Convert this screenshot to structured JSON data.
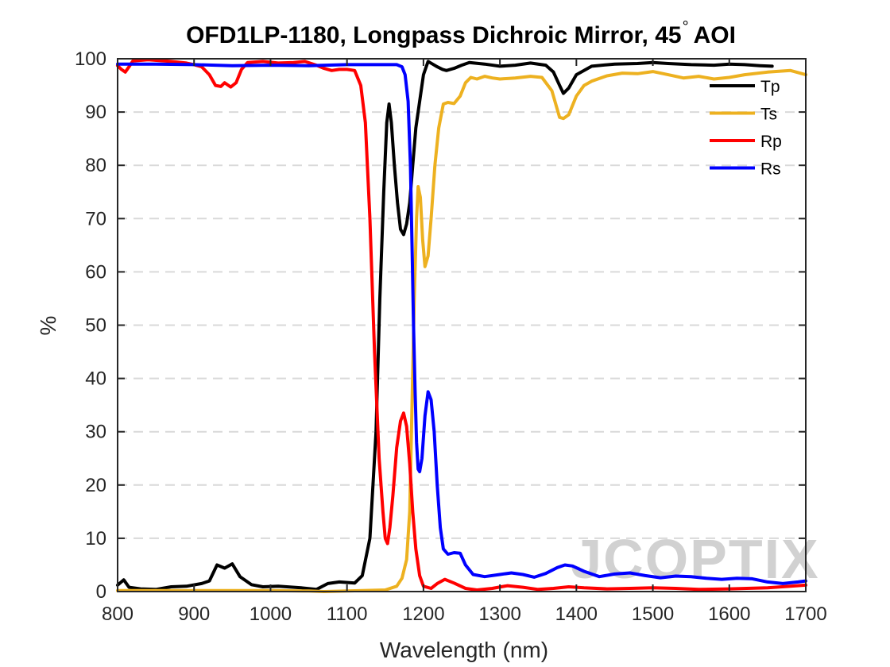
{
  "chart_data": {
    "type": "line",
    "title": "OFD1LP-1180, Longpass Dichroic Mirror, 45",
    "title_suffix": "AOI",
    "title_degree": "°",
    "xlabel": "Wavelength (nm)",
    "ylabel": "%",
    "xlim": [
      800,
      1700
    ],
    "ylim": [
      0,
      100
    ],
    "xticks": [
      800,
      900,
      1000,
      1100,
      1200,
      1300,
      1400,
      1500,
      1600,
      1700
    ],
    "yticks": [
      0,
      10,
      20,
      30,
      40,
      50,
      60,
      70,
      80,
      90,
      100
    ],
    "grid": "horizontal-dashed",
    "legend_position": "top-right",
    "watermark": "JCOPTIX",
    "series": [
      {
        "name": "Tp",
        "color": "#000000",
        "points": [
          [
            800,
            1.2
          ],
          [
            808,
            2.2
          ],
          [
            815,
            0.8
          ],
          [
            830,
            0.5
          ],
          [
            850,
            0.4
          ],
          [
            870,
            0.9
          ],
          [
            890,
            1.0
          ],
          [
            910,
            1.5
          ],
          [
            920,
            2.0
          ],
          [
            930,
            5.0
          ],
          [
            940,
            4.4
          ],
          [
            950,
            5.2
          ],
          [
            960,
            2.8
          ],
          [
            975,
            1.3
          ],
          [
            990,
            0.9
          ],
          [
            1010,
            1.0
          ],
          [
            1040,
            0.7
          ],
          [
            1060,
            0.4
          ],
          [
            1075,
            1.5
          ],
          [
            1090,
            1.8
          ],
          [
            1110,
            1.6
          ],
          [
            1120,
            3
          ],
          [
            1130,
            10
          ],
          [
            1138,
            30
          ],
          [
            1143,
            55
          ],
          [
            1148,
            75
          ],
          [
            1152,
            88
          ],
          [
            1155,
            91.5
          ],
          [
            1158,
            88
          ],
          [
            1162,
            80
          ],
          [
            1166,
            73
          ],
          [
            1170,
            68
          ],
          [
            1174,
            67
          ],
          [
            1178,
            69
          ],
          [
            1182,
            73
          ],
          [
            1186,
            80
          ],
          [
            1190,
            87
          ],
          [
            1195,
            92
          ],
          [
            1200,
            97
          ],
          [
            1206,
            99.5
          ],
          [
            1212,
            99
          ],
          [
            1218,
            98.5
          ],
          [
            1225,
            98
          ],
          [
            1230,
            97.8
          ],
          [
            1240,
            98.2
          ],
          [
            1250,
            98.8
          ],
          [
            1260,
            99.3
          ],
          [
            1280,
            99
          ],
          [
            1300,
            98.6
          ],
          [
            1320,
            98.8
          ],
          [
            1340,
            99.2
          ],
          [
            1360,
            98.8
          ],
          [
            1370,
            97.5
          ],
          [
            1378,
            95
          ],
          [
            1383,
            93.5
          ],
          [
            1390,
            94.5
          ],
          [
            1400,
            97
          ],
          [
            1420,
            98.6
          ],
          [
            1450,
            99
          ],
          [
            1480,
            99.1
          ],
          [
            1500,
            99.3
          ],
          [
            1520,
            99.1
          ],
          [
            1550,
            98.9
          ],
          [
            1580,
            98.8
          ],
          [
            1600,
            99
          ],
          [
            1620,
            98.9
          ],
          [
            1640,
            98.7
          ],
          [
            1656,
            98.6
          ]
        ]
      },
      {
        "name": "Ts",
        "color": "#EDB120",
        "points": [
          [
            800,
            0.2
          ],
          [
            900,
            0.2
          ],
          [
            1000,
            0.2
          ],
          [
            1050,
            0.1
          ],
          [
            1070,
            0.0
          ],
          [
            1100,
            0.1
          ],
          [
            1150,
            0.3
          ],
          [
            1165,
            1.0
          ],
          [
            1172,
            2.5
          ],
          [
            1178,
            6
          ],
          [
            1182,
            15
          ],
          [
            1185,
            35
          ],
          [
            1188,
            55
          ],
          [
            1191,
            70
          ],
          [
            1193,
            76
          ],
          [
            1196,
            74
          ],
          [
            1199,
            66
          ],
          [
            1202,
            61
          ],
          [
            1206,
            63
          ],
          [
            1210,
            70
          ],
          [
            1215,
            80
          ],
          [
            1220,
            87
          ],
          [
            1226,
            91.5
          ],
          [
            1232,
            91.8
          ],
          [
            1240,
            91.6
          ],
          [
            1248,
            93
          ],
          [
            1255,
            95.5
          ],
          [
            1262,
            96.5
          ],
          [
            1270,
            96.2
          ],
          [
            1280,
            96.7
          ],
          [
            1290,
            96.4
          ],
          [
            1300,
            96.2
          ],
          [
            1320,
            96.4
          ],
          [
            1340,
            96.7
          ],
          [
            1355,
            96.5
          ],
          [
            1368,
            94
          ],
          [
            1378,
            89
          ],
          [
            1383,
            88.8
          ],
          [
            1390,
            89.5
          ],
          [
            1400,
            93
          ],
          [
            1410,
            95
          ],
          [
            1420,
            95.8
          ],
          [
            1440,
            96.8
          ],
          [
            1460,
            97.3
          ],
          [
            1480,
            97.2
          ],
          [
            1500,
            97.6
          ],
          [
            1520,
            97
          ],
          [
            1540,
            96.4
          ],
          [
            1560,
            96.7
          ],
          [
            1580,
            96.2
          ],
          [
            1600,
            96.5
          ],
          [
            1620,
            97
          ],
          [
            1650,
            97.5
          ],
          [
            1680,
            97.8
          ],
          [
            1700,
            97
          ]
        ]
      },
      {
        "name": "Rp",
        "color": "#FF0000",
        "points": [
          [
            800,
            98.7
          ],
          [
            805,
            98
          ],
          [
            810,
            97.5
          ],
          [
            815,
            98.5
          ],
          [
            820,
            99.6
          ],
          [
            840,
            99.8
          ],
          [
            870,
            99.5
          ],
          [
            890,
            99.2
          ],
          [
            900,
            98.9
          ],
          [
            910,
            98.5
          ],
          [
            920,
            97
          ],
          [
            928,
            95
          ],
          [
            935,
            94.8
          ],
          [
            940,
            95.5
          ],
          [
            948,
            94.7
          ],
          [
            955,
            95.5
          ],
          [
            962,
            98
          ],
          [
            970,
            99.3
          ],
          [
            990,
            99.5
          ],
          [
            1010,
            99.2
          ],
          [
            1030,
            99.3
          ],
          [
            1045,
            99.5
          ],
          [
            1060,
            98.8
          ],
          [
            1070,
            98.2
          ],
          [
            1080,
            97.8
          ],
          [
            1090,
            98
          ],
          [
            1100,
            98
          ],
          [
            1110,
            97.8
          ],
          [
            1118,
            95
          ],
          [
            1124,
            88
          ],
          [
            1130,
            70
          ],
          [
            1136,
            45
          ],
          [
            1142,
            25
          ],
          [
            1147,
            15
          ],
          [
            1150,
            10
          ],
          [
            1153,
            9
          ],
          [
            1156,
            12
          ],
          [
            1160,
            18
          ],
          [
            1165,
            27
          ],
          [
            1170,
            32
          ],
          [
            1174,
            33.5
          ],
          [
            1178,
            31
          ],
          [
            1182,
            24
          ],
          [
            1186,
            15
          ],
          [
            1190,
            8
          ],
          [
            1195,
            3
          ],
          [
            1200,
            1
          ],
          [
            1210,
            0.6
          ],
          [
            1218,
            1.5
          ],
          [
            1228,
            2.3
          ],
          [
            1240,
            1.6
          ],
          [
            1255,
            0.6
          ],
          [
            1270,
            0.3
          ],
          [
            1290,
            0.6
          ],
          [
            1310,
            1.1
          ],
          [
            1330,
            0.8
          ],
          [
            1350,
            0.4
          ],
          [
            1370,
            0.6
          ],
          [
            1390,
            0.9
          ],
          [
            1410,
            0.7
          ],
          [
            1440,
            0.5
          ],
          [
            1470,
            0.6
          ],
          [
            1500,
            0.7
          ],
          [
            1530,
            0.6
          ],
          [
            1560,
            0.4
          ],
          [
            1600,
            0.5
          ],
          [
            1650,
            0.7
          ],
          [
            1680,
            1.0
          ],
          [
            1700,
            1.2
          ]
        ]
      },
      {
        "name": "Rs",
        "color": "#0000FF",
        "points": [
          [
            800,
            99
          ],
          [
            850,
            99
          ],
          [
            900,
            98.9
          ],
          [
            950,
            98.7
          ],
          [
            1000,
            98.8
          ],
          [
            1050,
            98.7
          ],
          [
            1100,
            98.9
          ],
          [
            1150,
            98.9
          ],
          [
            1165,
            98.9
          ],
          [
            1172,
            98.5
          ],
          [
            1176,
            97
          ],
          [
            1180,
            92
          ],
          [
            1183,
            80
          ],
          [
            1185,
            65
          ],
          [
            1187,
            50
          ],
          [
            1189,
            38
          ],
          [
            1191,
            28
          ],
          [
            1193,
            23
          ],
          [
            1195,
            22.5
          ],
          [
            1198,
            25
          ],
          [
            1202,
            33
          ],
          [
            1206,
            37.5
          ],
          [
            1210,
            36
          ],
          [
            1214,
            30
          ],
          [
            1218,
            20
          ],
          [
            1222,
            12
          ],
          [
            1226,
            8
          ],
          [
            1232,
            7
          ],
          [
            1240,
            7.3
          ],
          [
            1248,
            7.2
          ],
          [
            1255,
            5
          ],
          [
            1265,
            3.2
          ],
          [
            1280,
            2.8
          ],
          [
            1300,
            3.2
          ],
          [
            1315,
            3.5
          ],
          [
            1330,
            3.2
          ],
          [
            1345,
            2.7
          ],
          [
            1360,
            3.4
          ],
          [
            1375,
            4.5
          ],
          [
            1385,
            5.0
          ],
          [
            1395,
            4.8
          ],
          [
            1410,
            3.8
          ],
          [
            1430,
            2.8
          ],
          [
            1450,
            3.3
          ],
          [
            1470,
            3.5
          ],
          [
            1490,
            3.0
          ],
          [
            1510,
            2.6
          ],
          [
            1530,
            2.9
          ],
          [
            1550,
            2.8
          ],
          [
            1570,
            2.5
          ],
          [
            1590,
            2.3
          ],
          [
            1610,
            2.5
          ],
          [
            1630,
            2.4
          ],
          [
            1650,
            1.8
          ],
          [
            1670,
            1.5
          ],
          [
            1690,
            1.8
          ],
          [
            1700,
            2.0
          ]
        ]
      }
    ]
  }
}
